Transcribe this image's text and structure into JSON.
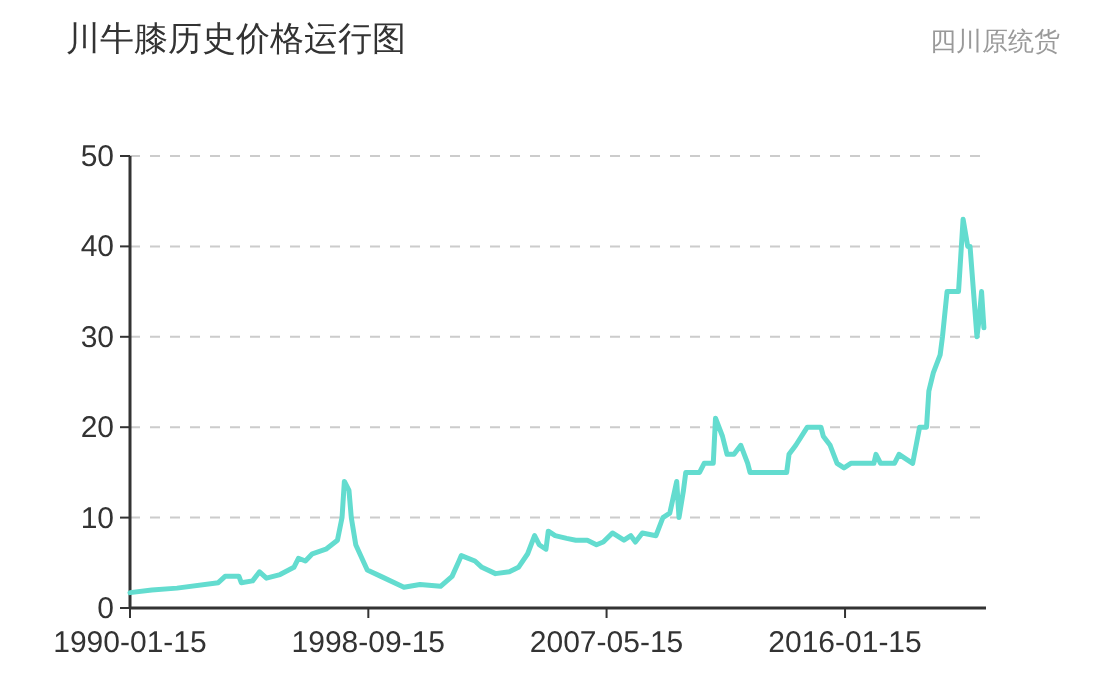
{
  "chart_data": {
    "type": "line",
    "title": "川牛膝历史价格运行图",
    "subtitle": "四川原统货",
    "x": [
      "1990-01-15",
      "1990-11",
      "1991-10",
      "1993-04",
      "1993-07",
      "1994-01",
      "1994-02",
      "1994-07",
      "1994-10",
      "1995-01",
      "1995-07",
      "1996-01",
      "1996-03",
      "1996-06",
      "1996-09",
      "1997-03",
      "1997-08",
      "1997-10",
      "1997-11",
      "1998-01",
      "1998-02",
      "1998-04",
      "1998-09",
      "1999-03",
      "2000-01",
      "2000-08",
      "2001-05",
      "2001-10",
      "2002-01",
      "2002-02",
      "2002-08",
      "2002-11",
      "2003-05",
      "2003-11",
      "2004-03",
      "2004-07",
      "2004-10",
      "2004-12",
      "2005-03",
      "2005-04",
      "2005-07",
      "2005-12",
      "2006-04",
      "2006-09",
      "2007-01",
      "2007-04",
      "2007-08",
      "2008-01",
      "2008-04",
      "2008-06",
      "2008-09",
      "2009-03",
      "2009-06",
      "2009-09",
      "2009-12",
      "2010-01",
      "2010-03",
      "2010-04",
      "2010-10",
      "2010-12",
      "2011-04",
      "2011-05",
      "2011-08",
      "2011-10",
      "2012-01",
      "2012-04",
      "2012-07",
      "2012-08",
      "2012-11",
      "2013-12",
      "2014-01",
      "2014-04",
      "2014-09",
      "2015-03",
      "2015-04",
      "2015-07",
      "2015-10",
      "2016-01",
      "2016-04",
      "2017-02",
      "2017-03",
      "2017-05",
      "2017-11",
      "2018-01",
      "2018-04",
      "2018-07",
      "2018-10",
      "2019-01",
      "2019-02",
      "2019-04",
      "2019-07",
      "2019-08",
      "2019-10",
      "2020-03",
      "2020-05",
      "2020-07",
      "2020-08",
      "2020-11",
      "2020-12",
      "2021-01",
      "2021-02"
    ],
    "series": [
      {
        "color": "#63dccf",
        "values": [
          1.7,
          2.0,
          2.2,
          2.8,
          3.5,
          3.5,
          2.8,
          3.0,
          4.0,
          3.3,
          3.7,
          4.5,
          5.5,
          5.2,
          6.0,
          6.5,
          7.5,
          10,
          14,
          13,
          10,
          7,
          4.2,
          3.5,
          2.3,
          2.6,
          2.4,
          3.5,
          5.2,
          5.8,
          5.2,
          4.5,
          3.8,
          4.0,
          4.5,
          6.0,
          8.0,
          7.0,
          6.5,
          8.5,
          8.0,
          7.7,
          7.5,
          7.5,
          7.0,
          7.3,
          8.3,
          7.5,
          8.0,
          7.3,
          8.3,
          8.0,
          10,
          10.5,
          14,
          10,
          13,
          15,
          15,
          16,
          16,
          21,
          19,
          17,
          17,
          18,
          16,
          15,
          15,
          15,
          17,
          18,
          20,
          20,
          19,
          18,
          16,
          15.5,
          16,
          16,
          17,
          16,
          16,
          17,
          16.5,
          16,
          20,
          20,
          24,
          26,
          28,
          30,
          35,
          35,
          43,
          40,
          40,
          30,
          32,
          35,
          31
        ]
      }
    ],
    "xlim": [
      "1990-01-15",
      "2021-03"
    ],
    "xticks": [
      {
        "value": "1990-01-15",
        "label": "1990-01-15"
      },
      {
        "value": "1998-09-15",
        "label": "1998-09-15"
      },
      {
        "value": "2007-05-15",
        "label": "2007-05-15"
      },
      {
        "value": "2016-01-15",
        "label": "2016-01-15"
      }
    ],
    "ylim": [
      0,
      50
    ],
    "yticks": [
      0,
      10,
      20,
      30,
      40,
      50
    ],
    "grid": "y",
    "line_style": "solid"
  }
}
